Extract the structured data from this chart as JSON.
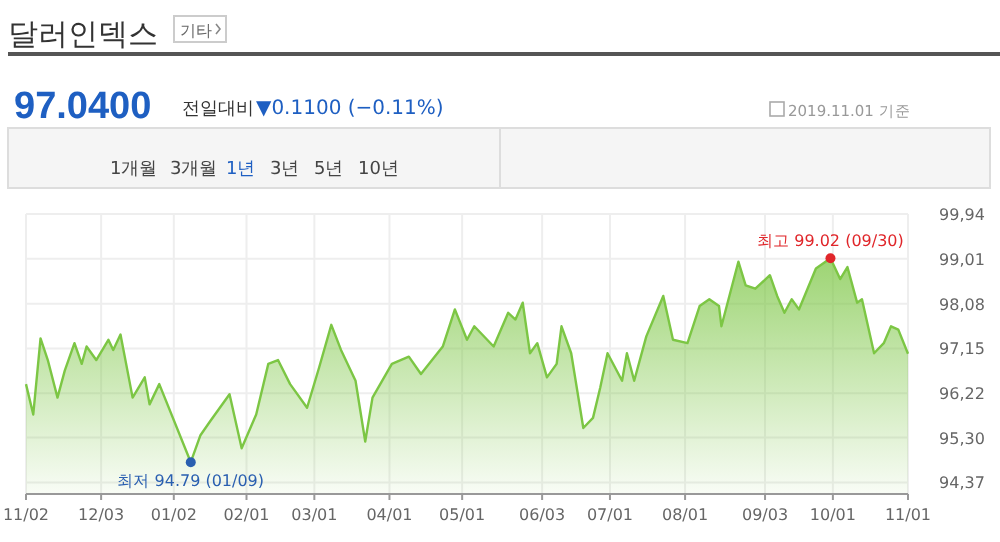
{
  "chart_data": {
    "type": "area",
    "title": "달러인덱스",
    "annotations": [
      "기타",
      "97.0400",
      "전일대비",
      "▼0.1100 (−0.11%)",
      "2019.11.01 기준",
      "1개월",
      "3개월",
      "1년",
      "3년",
      "5년",
      "10년",
      {
        "text": "최저 94.79 (01/09)",
        "x": "2019-01-09",
        "y": 94.79
      },
      {
        "text": "최고 99.02 (09/30)",
        "x": "2019-09-30",
        "y": 99.02
      }
    ],
    "x": [
      "2018-11-02",
      "2018-11-05",
      "2018-11-08",
      "2018-11-11",
      "2018-11-15",
      "2018-11-18",
      "2018-11-22",
      "2018-11-25",
      "2018-11-27",
      "2018-12-01",
      "2018-12-06",
      "2018-12-08",
      "2018-12-11",
      "2018-12-16",
      "2018-12-21",
      "2018-12-23",
      "2018-12-27",
      "2019-01-09",
      "2019-01-13",
      "2019-01-17",
      "2019-01-25",
      "2019-01-30",
      "2019-02-05",
      "2019-02-10",
      "2019-02-14",
      "2019-02-19",
      "2019-02-26",
      "2019-03-03",
      "2019-03-08",
      "2019-03-12",
      "2019-03-18",
      "2019-03-22",
      "2019-03-25",
      "2019-04-02",
      "2019-04-09",
      "2019-04-14",
      "2019-04-23",
      "2019-04-28",
      "2019-05-03",
      "2019-05-06",
      "2019-05-14",
      "2019-05-20",
      "2019-05-23",
      "2019-05-26",
      "2019-05-29",
      "2019-06-01",
      "2019-06-05",
      "2019-06-09",
      "2019-06-11",
      "2019-06-15",
      "2019-06-20",
      "2019-06-24",
      "2019-06-27",
      "2019-06-30",
      "2019-07-06",
      "2019-07-08",
      "2019-07-11",
      "2019-07-16",
      "2019-07-23",
      "2019-07-27",
      "2019-08-02",
      "2019-08-07",
      "2019-08-11",
      "2019-08-15",
      "2019-08-16",
      "2019-08-23",
      "2019-08-26",
      "2019-08-30",
      "2019-09-05",
      "2019-09-08",
      "2019-09-11",
      "2019-09-14",
      "2019-09-17",
      "2019-09-24",
      "2019-09-30",
      "2019-10-04",
      "2019-10-07",
      "2019-10-11",
      "2019-10-13",
      "2019-10-18",
      "2019-10-22",
      "2019-10-25",
      "2019-10-28",
      "2019-11-01"
    ],
    "series": [
      {
        "color": "#7cc644",
        "values": [
          96.41,
          95.78,
          97.36,
          96.91,
          96.13,
          96.69,
          97.26,
          96.83,
          97.19,
          96.91,
          97.33,
          97.12,
          97.44,
          96.13,
          96.55,
          95.99,
          96.41,
          94.79,
          95.35,
          95.64,
          96.2,
          95.08,
          95.78,
          96.83,
          96.91,
          96.41,
          95.92,
          96.76,
          97.64,
          97.12,
          96.48,
          95.22,
          96.13,
          96.83,
          96.98,
          96.62,
          97.19,
          97.96,
          97.33,
          97.61,
          97.19,
          97.89,
          97.75,
          98.1,
          97.05,
          97.26,
          96.55,
          96.83,
          97.61,
          97.05,
          95.5,
          95.71,
          96.34,
          97.05,
          96.48,
          97.05,
          96.48,
          97.4,
          98.24,
          97.33,
          97.26,
          98.03,
          98.17,
          98.03,
          97.61,
          98.95,
          98.46,
          98.39,
          98.67,
          98.24,
          97.89,
          98.17,
          97.96,
          98.81,
          99.02,
          98.59,
          98.84,
          98.1,
          98.17,
          97.05,
          97.26,
          97.61,
          97.54,
          97.04
        ]
      }
    ],
    "xlim": [
      "2018-11-02",
      "2019-11-01"
    ],
    "xticks": [
      {
        "value": "2018-11-02",
        "label": "11/02"
      },
      {
        "value": "2018-12-03",
        "label": "12/03"
      },
      {
        "value": "2019-01-02",
        "label": "01/02"
      },
      {
        "value": "2019-02-01",
        "label": "02/01"
      },
      {
        "value": "2019-03-01",
        "label": "03/01"
      },
      {
        "value": "2019-04-01",
        "label": "04/01"
      },
      {
        "value": "2019-05-01",
        "label": "05/01"
      },
      {
        "value": "2019-06-03",
        "label": "06/03"
      },
      {
        "value": "2019-07-01",
        "label": "07/01"
      },
      {
        "value": "2019-08-01",
        "label": "08/01"
      },
      {
        "value": "2019-09-03",
        "label": "09/03"
      },
      {
        "value": "2019-10-01",
        "label": "10/01"
      },
      {
        "value": "2019-11-01",
        "label": "11/01"
      }
    ],
    "ylim": [
      94.13,
      99.94
    ],
    "yticks": [
      {
        "value": 94.37,
        "label": "94,37"
      },
      {
        "value": 95.3,
        "label": "95,30"
      },
      {
        "value": 96.22,
        "label": "96,22"
      },
      {
        "value": 97.15,
        "label": "97,15"
      },
      {
        "value": 98.08,
        "label": "98,08"
      },
      {
        "value": 99.01,
        "label": "99,01"
      },
      {
        "value": 99.94,
        "label": "99,94"
      }
    ],
    "grid": true
  }
}
